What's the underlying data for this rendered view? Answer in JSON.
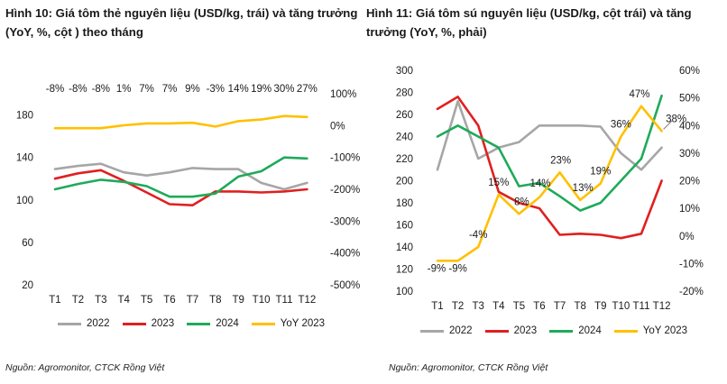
{
  "chart_data": [
    {
      "type": "line",
      "title": "Hình 10: Giá tôm thẻ nguyên liệu (USD/kg, trái) và tăng trưởng (YoY, %, cột ) theo tháng",
      "source": "Nguồn: Agromonitor, CTCK Rồng Việt",
      "categories": [
        "T1",
        "T2",
        "T3",
        "T4",
        "T5",
        "T6",
        "T7",
        "T8",
        "T9",
        "T10",
        "T11",
        "T12"
      ],
      "y_left": {
        "min": 20,
        "max": 200,
        "ticks": [
          20,
          60,
          100,
          140,
          180
        ]
      },
      "y_right": {
        "min": -500,
        "max": 100,
        "ticks": [
          "-500%",
          "-400%",
          "-300%",
          "-200%",
          "-100%",
          "0%",
          "100%"
        ]
      },
      "series": [
        {
          "name": "2022",
          "axis": "left",
          "color": "#a6a6a6",
          "values": [
            129,
            132,
            134,
            126,
            123,
            126,
            130,
            129,
            129,
            116,
            110,
            116
          ]
        },
        {
          "name": "2023",
          "axis": "left",
          "color": "#e02020",
          "values": [
            120,
            125,
            128,
            118,
            107,
            96,
            95,
            108,
            108,
            107,
            108,
            110
          ]
        },
        {
          "name": "2024",
          "axis": "left",
          "color": "#1faa59",
          "values": [
            110,
            115,
            119,
            117,
            113,
            103,
            103,
            106,
            122,
            127,
            140,
            139
          ]
        },
        {
          "name": "YoY 2023",
          "axis": "right",
          "color": "#ffc000",
          "values": [
            -8,
            -8,
            -8,
            1,
            7,
            7,
            9,
            -3,
            14,
            19,
            30,
            27
          ]
        }
      ],
      "data_labels": [
        "-8%",
        "-8%",
        "-8%",
        "1%",
        "7%",
        "7%",
        "9%",
        "-3%",
        "14%",
        "19%",
        "30%",
        "27%"
      ]
    },
    {
      "type": "line",
      "title": "Hình 11: Giá tôm sú nguyên liệu (USD/kg, cột trái) và tăng trưởng (YoY, %, phải)",
      "source": "Nguồn: Agromonitor, CTCK Rồng Việt",
      "categories": [
        "T1",
        "T2",
        "T3",
        "T4",
        "T5",
        "T6",
        "T7",
        "T8",
        "T9",
        "T10",
        "T11",
        "T12"
      ],
      "y_left": {
        "min": 100,
        "max": 300,
        "ticks": [
          100,
          120,
          140,
          160,
          180,
          200,
          220,
          240,
          260,
          280,
          300
        ]
      },
      "y_right": {
        "min": -20,
        "max": 60,
        "ticks": [
          "-20%",
          "-10%",
          "0%",
          "10%",
          "20%",
          "30%",
          "40%",
          "50%",
          "60%"
        ]
      },
      "series": [
        {
          "name": "2022",
          "axis": "left",
          "color": "#a6a6a6",
          "values": [
            210,
            272,
            220,
            230,
            235,
            250,
            250,
            250,
            249,
            225,
            210,
            230
          ]
        },
        {
          "name": "2023",
          "axis": "left",
          "color": "#e02020",
          "values": [
            265,
            276,
            250,
            190,
            180,
            175,
            151,
            152,
            151,
            148,
            152,
            200
          ]
        },
        {
          "name": "2024",
          "axis": "left",
          "color": "#1faa59",
          "values": [
            240,
            250,
            240,
            230,
            195,
            198,
            186,
            173,
            180,
            200,
            220,
            277
          ]
        },
        {
          "name": "YoY 2023",
          "axis": "right",
          "color": "#ffc000",
          "values": [
            -9,
            -9,
            -4,
            15,
            8,
            14,
            23,
            13,
            19,
            36,
            47,
            38
          ]
        }
      ],
      "data_labels": [
        "-9%",
        "-9%",
        "-4%",
        "15%",
        "8%",
        "14%",
        "23%",
        "13%",
        "19%",
        "36%",
        "47%",
        "38%"
      ]
    }
  ]
}
